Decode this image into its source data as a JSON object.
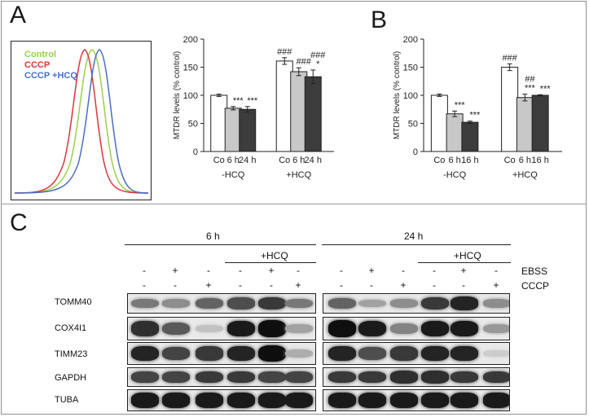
{
  "panels": {
    "A": "A",
    "B": "B",
    "C": "C"
  },
  "histogram": {
    "legend": [
      {
        "label": "Control",
        "color": "#9bd04a"
      },
      {
        "label": "CCCP",
        "color": "#d9363e"
      },
      {
        "label": "CCCP +HCQ",
        "color": "#4a6fc9"
      }
    ]
  },
  "chart_data": [
    {
      "type": "bar",
      "panel": "A",
      "ylabel": "MTDR levels (% control)",
      "ylim": [
        0,
        200
      ],
      "yticks": [
        "0",
        "50",
        "100",
        "150",
        "200"
      ],
      "categories": [
        "Co",
        "6 h",
        "24 h",
        "Co",
        "6 h",
        "24 h"
      ],
      "groups": [
        "-HCQ",
        "+HCQ"
      ],
      "values": [
        100,
        77,
        75,
        161,
        142,
        133
      ],
      "errors": [
        2,
        3,
        5,
        6,
        7,
        12
      ],
      "fills": [
        "#ffffff",
        "#c8c8c8",
        "#3c3c3c",
        "#ffffff",
        "#c8c8c8",
        "#3c3c3c"
      ],
      "annotations": [
        "",
        "***",
        "***",
        "###",
        "###",
        "###\n*"
      ]
    },
    {
      "type": "bar",
      "panel": "B",
      "ylabel": "MTDR levels (% control)",
      "ylim": [
        0,
        200
      ],
      "yticks": [
        "0",
        "50",
        "100",
        "150",
        "200"
      ],
      "categories": [
        "Co",
        "6 h",
        "16 h",
        "Co",
        "6 h",
        "16 h"
      ],
      "groups": [
        "-HCQ",
        "+HCQ"
      ],
      "values": [
        100,
        67,
        52,
        150,
        96,
        100
      ],
      "errors": [
        2,
        5,
        2,
        6,
        6,
        1
      ],
      "fills": [
        "#ffffff",
        "#c8c8c8",
        "#3c3c3c",
        "#ffffff",
        "#c8c8c8",
        "#3c3c3c"
      ],
      "annotations": [
        "",
        "***",
        "***",
        "###",
        "##\n***",
        "***"
      ]
    }
  ],
  "blot": {
    "time_headers": [
      "6 h",
      "24 h"
    ],
    "hcq_label": "+HCQ",
    "row_labels": {
      "ebss": "EBSS",
      "cccp": "CCCP"
    },
    "ebss_signs": [
      "-",
      "+",
      "-",
      "-",
      "+",
      "-"
    ],
    "cccp_signs": [
      "-",
      "-",
      "+",
      "-",
      "-",
      "+"
    ],
    "proteins": [
      "TOMM40",
      "COX4I1",
      "TIMM23",
      "GAPDH",
      "TUBA"
    ],
    "intensities": [
      [
        0.5,
        0.4,
        0.6,
        0.7,
        0.8,
        0.5,
        0.6,
        0.3,
        0.4,
        0.8,
        0.9,
        0.4
      ],
      [
        0.85,
        0.65,
        0.15,
        0.95,
        1.0,
        0.3,
        1.0,
        0.95,
        0.45,
        0.95,
        0.95,
        0.35
      ],
      [
        0.9,
        0.75,
        0.8,
        0.9,
        1.0,
        0.25,
        0.9,
        0.7,
        0.8,
        0.9,
        0.9,
        0.1
      ],
      [
        0.75,
        0.75,
        0.8,
        0.8,
        0.75,
        0.75,
        0.8,
        0.8,
        0.85,
        0.85,
        0.8,
        0.8
      ],
      [
        0.95,
        0.95,
        0.95,
        0.95,
        0.95,
        0.95,
        0.95,
        0.95,
        0.95,
        0.95,
        0.95,
        0.95
      ]
    ]
  }
}
